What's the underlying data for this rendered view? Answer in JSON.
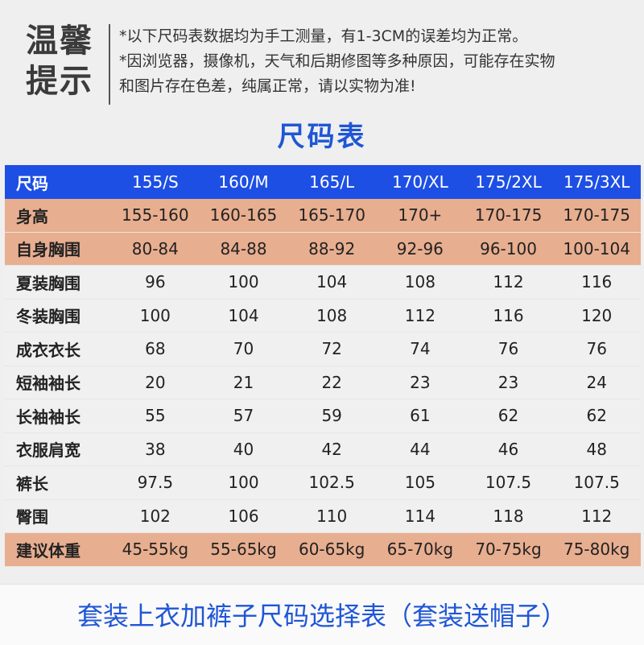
{
  "notice": {
    "heading_line1": "温馨",
    "heading_line2": "提示",
    "lines": [
      "*以下尺码表数据均为手工测量，有1-3CM的误差均为正常。",
      "*因浏览器，摄像机，天气和后期修图等多种原因，可能存在实物",
      "和图片存在色差，纯属正常，请以实物为准!"
    ]
  },
  "table_title": "尺码表",
  "table": {
    "header": [
      "尺码",
      "155/S",
      "160/M",
      "165/L",
      "170/XL",
      "175/2XL",
      "175/3XL"
    ],
    "rows": [
      {
        "label": "身高",
        "values": [
          "155-160",
          "160-165",
          "165-170",
          "170+",
          "170-175",
          "170-175"
        ]
      },
      {
        "label": "自身胸围",
        "values": [
          "80-84",
          "84-88",
          "88-92",
          "92-96",
          "96-100",
          "100-104"
        ]
      },
      {
        "label": "夏装胸围",
        "values": [
          "96",
          "100",
          "104",
          "108",
          "112",
          "116"
        ]
      },
      {
        "label": "冬装胸围",
        "values": [
          "100",
          "104",
          "108",
          "112",
          "116",
          "120"
        ]
      },
      {
        "label": "成衣衣长",
        "values": [
          "68",
          "70",
          "72",
          "74",
          "76",
          "76"
        ]
      },
      {
        "label": "短袖袖长",
        "values": [
          "20",
          "21",
          "22",
          "23",
          "23",
          "24"
        ]
      },
      {
        "label": "长袖袖长",
        "values": [
          "55",
          "57",
          "59",
          "61",
          "62",
          "62"
        ]
      },
      {
        "label": "衣服肩宽",
        "values": [
          "38",
          "40",
          "42",
          "44",
          "46",
          "48"
        ]
      },
      {
        "label": "裤长",
        "values": [
          "97.5",
          "100",
          "102.5",
          "105",
          "107.5",
          "107.5"
        ]
      },
      {
        "label": "臀围",
        "values": [
          "102",
          "106",
          "110",
          "114",
          "118",
          "112"
        ]
      },
      {
        "label": "建议体重",
        "values": [
          "45-55kg",
          "55-65kg",
          "60-65kg",
          "65-70kg",
          "70-75kg",
          "75-80kg"
        ]
      }
    ]
  },
  "footer_text": "套装上衣加裤子尺码选择表（套装送帽子）",
  "colors": {
    "header_blue": "#1d4fe4",
    "peach": "#e8ae90",
    "title_blue": "#1f56d6"
  }
}
